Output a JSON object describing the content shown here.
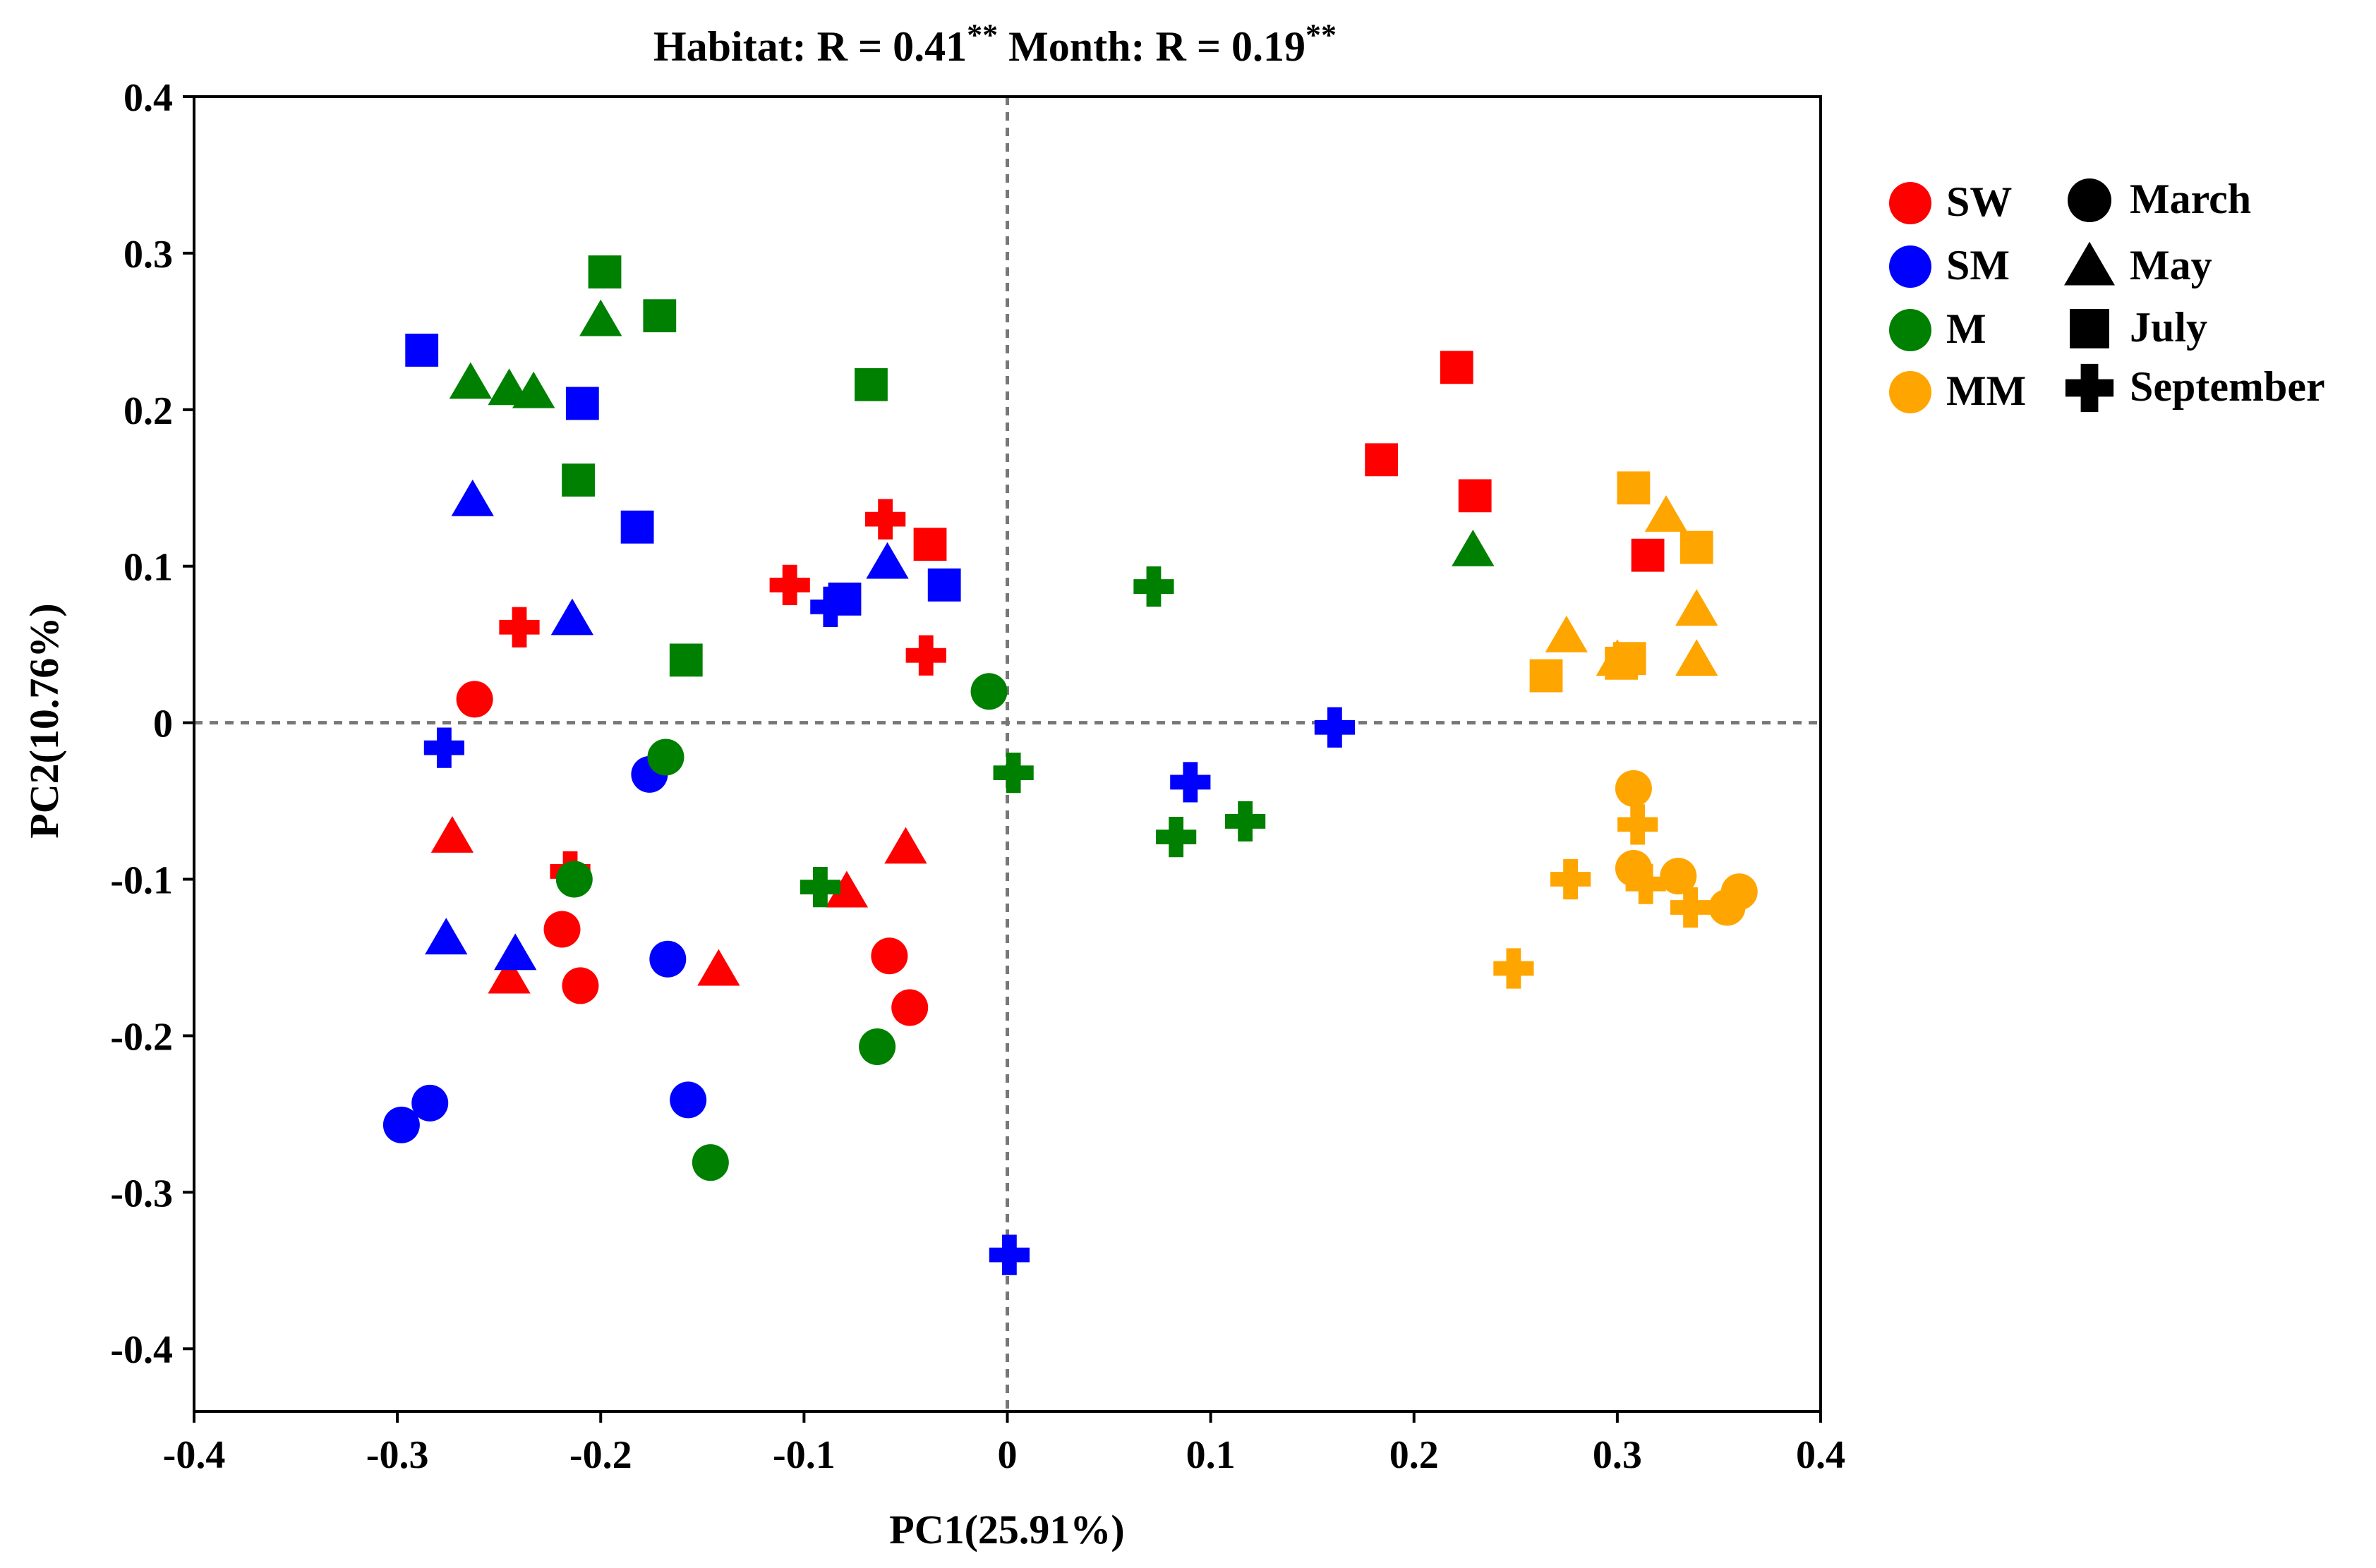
{
  "chart_data": {
    "type": "scatter",
    "title": {
      "habitat_text": "Habitat: R = 0.41",
      "habitat_sig": "**",
      "month_text": "Month: R = 0.19",
      "month_sig": "**"
    },
    "xlabel": "PC1(25.91%)",
    "ylabel": "PC2(10.76%)",
    "xlim": [
      -0.4,
      0.4
    ],
    "ylim": [
      -0.44,
      0.4
    ],
    "xticks": [
      -0.4,
      -0.3,
      -0.2,
      -0.1,
      0,
      0.1,
      0.2,
      0.3,
      0.4
    ],
    "xtick_labels": [
      "-0.4",
      "-0.3",
      "-0.2",
      "-0.1",
      "0",
      "0.1",
      "0.2",
      "0.3",
      "0.4"
    ],
    "yticks": [
      0.4,
      0.3,
      0.2,
      0.1,
      0,
      -0.1,
      -0.2,
      -0.3,
      -0.4
    ],
    "ytick_labels": [
      "0.4",
      "0.3",
      "0.2",
      "0.1",
      "0",
      "-0.1",
      "-0.2",
      "-0.3",
      "-0.4"
    ],
    "reference_lines": {
      "x": 0,
      "y": 0,
      "style": "dashed"
    },
    "habitats": [
      {
        "key": "SW",
        "label": "SW",
        "color": "#ff0000"
      },
      {
        "key": "SM",
        "label": "SM",
        "color": "#0000ff"
      },
      {
        "key": "M",
        "label": "M",
        "color": "#008000"
      },
      {
        "key": "MM",
        "label": "MM",
        "color": "#ffa500"
      }
    ],
    "months": [
      {
        "key": "March",
        "label": "March",
        "shape": "circle"
      },
      {
        "key": "May",
        "label": "May",
        "shape": "triangle"
      },
      {
        "key": "July",
        "label": "July",
        "shape": "square"
      },
      {
        "key": "September",
        "label": "September",
        "shape": "cross"
      }
    ],
    "series": [
      {
        "habitat": "SW",
        "month": "March",
        "points": [
          [
            -0.262,
            0.015
          ],
          [
            -0.219,
            -0.132
          ],
          [
            -0.21,
            -0.168
          ],
          [
            -0.058,
            -0.149
          ],
          [
            -0.048,
            -0.182
          ]
        ]
      },
      {
        "habitat": "SW",
        "month": "May",
        "points": [
          [
            -0.273,
            -0.073
          ],
          [
            -0.245,
            -0.163
          ],
          [
            -0.142,
            -0.158
          ],
          [
            -0.079,
            -0.108
          ],
          [
            -0.05,
            -0.08
          ]
        ]
      },
      {
        "habitat": "SW",
        "month": "July",
        "points": [
          [
            -0.038,
            0.114
          ],
          [
            0.221,
            0.227
          ],
          [
            0.184,
            0.168
          ],
          [
            0.23,
            0.145
          ],
          [
            0.315,
            0.107
          ]
        ]
      },
      {
        "habitat": "SW",
        "month": "September",
        "points": [
          [
            -0.06,
            0.13
          ],
          [
            -0.107,
            0.088
          ],
          [
            -0.24,
            0.061
          ],
          [
            -0.04,
            0.043
          ],
          [
            -0.215,
            -0.095
          ]
        ]
      },
      {
        "habitat": "SM",
        "month": "March",
        "points": [
          [
            -0.176,
            -0.033
          ],
          [
            -0.167,
            -0.151
          ],
          [
            -0.157,
            -0.241
          ],
          [
            -0.284,
            -0.243
          ],
          [
            -0.298,
            -0.257
          ]
        ]
      },
      {
        "habitat": "SM",
        "month": "May",
        "points": [
          [
            -0.263,
            0.142
          ],
          [
            -0.214,
            0.066
          ],
          [
            -0.059,
            0.102
          ],
          [
            -0.276,
            -0.138
          ],
          [
            -0.242,
            -0.148
          ]
        ]
      },
      {
        "habitat": "SM",
        "month": "July",
        "points": [
          [
            -0.288,
            0.238
          ],
          [
            -0.209,
            0.204
          ],
          [
            -0.182,
            0.125
          ],
          [
            -0.08,
            0.079
          ],
          [
            -0.031,
            0.088
          ]
        ]
      },
      {
        "habitat": "SM",
        "month": "September",
        "points": [
          [
            -0.277,
            -0.016
          ],
          [
            -0.087,
            0.074
          ],
          [
            0.09,
            -0.038
          ],
          [
            0.161,
            -0.003
          ],
          [
            0.001,
            -0.34
          ]
        ]
      },
      {
        "habitat": "M",
        "month": "March",
        "points": [
          [
            -0.168,
            -0.022
          ],
          [
            -0.213,
            -0.1
          ],
          [
            -0.009,
            0.02
          ],
          [
            -0.064,
            -0.207
          ],
          [
            -0.146,
            -0.281
          ]
        ]
      },
      {
        "habitat": "M",
        "month": "May",
        "points": [
          [
            -0.264,
            0.217
          ],
          [
            -0.245,
            0.213
          ],
          [
            -0.233,
            0.211
          ],
          [
            -0.2,
            0.257
          ],
          [
            0.229,
            0.11
          ]
        ]
      },
      {
        "habitat": "M",
        "month": "July",
        "points": [
          [
            -0.198,
            0.288
          ],
          [
            -0.171,
            0.26
          ],
          [
            -0.067,
            0.216
          ],
          [
            -0.211,
            0.155
          ],
          [
            -0.158,
            0.04
          ]
        ]
      },
      {
        "habitat": "M",
        "month": "September",
        "points": [
          [
            0.072,
            0.087
          ],
          [
            0.003,
            -0.032
          ],
          [
            -0.092,
            -0.105
          ],
          [
            0.083,
            -0.073
          ],
          [
            0.117,
            -0.063
          ]
        ]
      },
      {
        "habitat": "MM",
        "month": "March",
        "points": [
          [
            0.308,
            -0.042
          ],
          [
            0.308,
            -0.093
          ],
          [
            0.33,
            -0.098
          ],
          [
            0.36,
            -0.108
          ],
          [
            0.354,
            -0.118
          ]
        ]
      },
      {
        "habitat": "MM",
        "month": "May",
        "points": [
          [
            0.324,
            0.132
          ],
          [
            0.339,
            0.072
          ],
          [
            0.275,
            0.055
          ],
          [
            0.3,
            0.04
          ],
          [
            0.339,
            0.04
          ]
        ]
      },
      {
        "habitat": "MM",
        "month": "July",
        "points": [
          [
            0.308,
            0.15
          ],
          [
            0.339,
            0.112
          ],
          [
            0.265,
            0.03
          ],
          [
            0.306,
            0.041
          ],
          [
            0.302,
            0.038
          ]
        ]
      },
      {
        "habitat": "MM",
        "month": "September",
        "points": [
          [
            0.31,
            -0.065
          ],
          [
            0.277,
            -0.1
          ],
          [
            0.314,
            -0.103
          ],
          [
            0.336,
            -0.118
          ],
          [
            0.249,
            -0.157
          ]
        ]
      }
    ]
  }
}
